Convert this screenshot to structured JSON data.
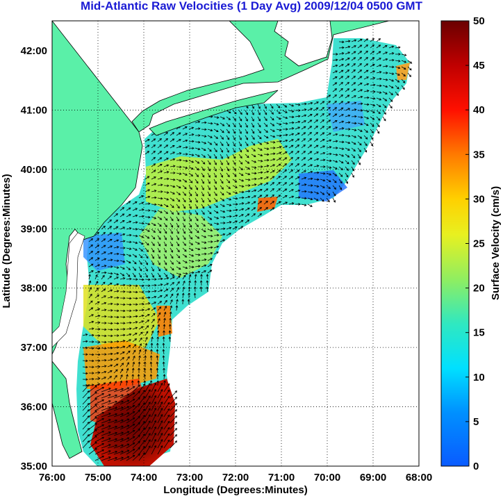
{
  "title": "Mid-Atlantic Raw Velocities (1 Day Avg) 2009/12/04 0500 GMT",
  "x_axis": {
    "label": "Longitude (Degrees:Minutes)",
    "ticks": [
      "76:00",
      "75:00",
      "74:00",
      "73:00",
      "72:00",
      "71:00",
      "70:00",
      "69:00",
      "68:00"
    ]
  },
  "y_axis": {
    "label": "Latitude (Degrees:Minutes)",
    "ticks": [
      "42:00",
      "41:00",
      "40:00",
      "39:00",
      "38:00",
      "37:00",
      "36:00",
      "35:00"
    ]
  },
  "colorbar": {
    "label": "Surface Velocity (cm/s)",
    "ticks": [
      "50",
      "45",
      "40",
      "35",
      "30",
      "25",
      "20",
      "15",
      "10",
      "5",
      "0"
    ],
    "range": [
      0,
      50
    ],
    "colormap": [
      "#0a5bff",
      "#00bfff",
      "#30e0c0",
      "#b0f040",
      "#ffe000",
      "#ff8000",
      "#e01000",
      "#6a0000"
    ]
  },
  "colors": {
    "land": "#5af0a8",
    "ocean": "#ffffff",
    "grid": "#000000"
  }
}
